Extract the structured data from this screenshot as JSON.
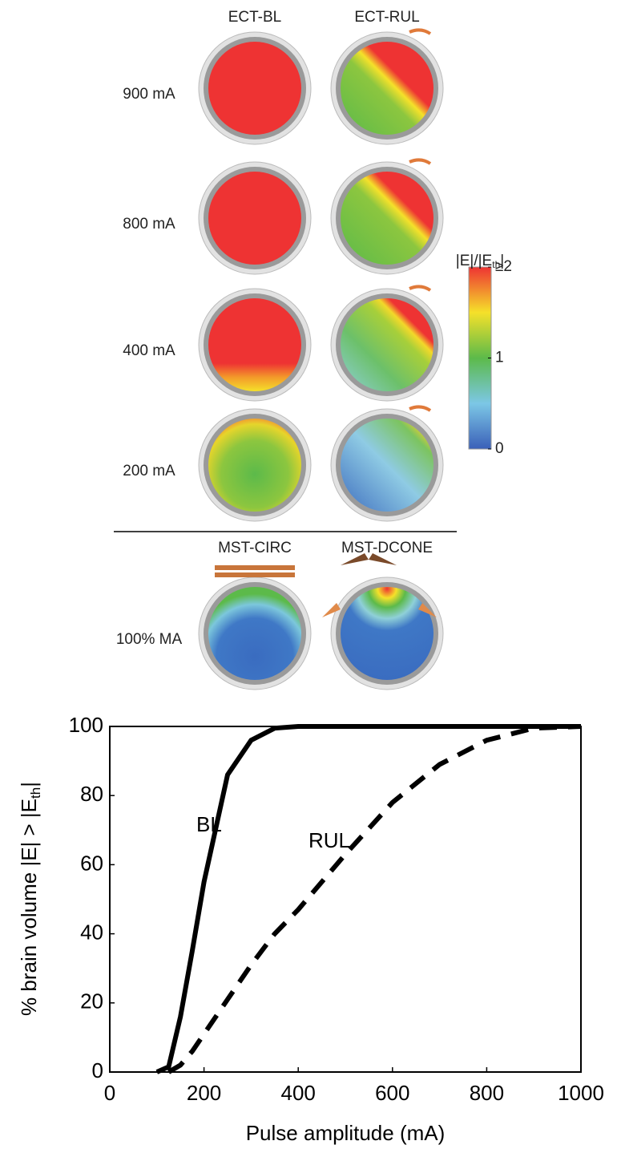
{
  "figure": {
    "columns": [
      "ECT-BL",
      "ECT-RUL"
    ],
    "rows": [
      "900 mA",
      "800 mA",
      "400 mA",
      "200 mA"
    ],
    "mst_columns": [
      "MST-CIRC",
      "MST-DCONE"
    ],
    "mst_row": "100% MA",
    "colorbar": {
      "title_parts": [
        "|E|/|E",
        "th",
        "|"
      ],
      "range": [
        0,
        2
      ],
      "ticks": [
        {
          "value": 2,
          "label": "≥2"
        },
        1,
        0
      ]
    }
  },
  "chart_data": {
    "type": "line",
    "ylabel_parts": [
      "% brain volume |E| > |E",
      "th",
      "|"
    ],
    "xlabel": "Pulse amplitude (mA)",
    "x": [
      100,
      125,
      150,
      175,
      200,
      250,
      300,
      350,
      400,
      500,
      600,
      700,
      800,
      900,
      1000
    ],
    "series": [
      {
        "name": "BL",
        "color": "#000000",
        "linestyle": "solid",
        "values": [
          0,
          1.5,
          16,
          35,
          55,
          86,
          96,
          99.5,
          100,
          100,
          100,
          100,
          100,
          100,
          100
        ]
      },
      {
        "name": "RUL",
        "color": "#000000",
        "linestyle": "dashed",
        "values": [
          null,
          0,
          2,
          6,
          11,
          21,
          31,
          40,
          47,
          63,
          78,
          89,
          96,
          99.5,
          100
        ]
      }
    ],
    "xlim": [
      0,
      1000
    ],
    "ylim": [
      0,
      100
    ],
    "xticks": [
      0,
      200,
      400,
      600,
      800,
      1000
    ],
    "yticks": [
      0,
      20,
      40,
      60,
      80,
      100
    ],
    "grid": false
  }
}
